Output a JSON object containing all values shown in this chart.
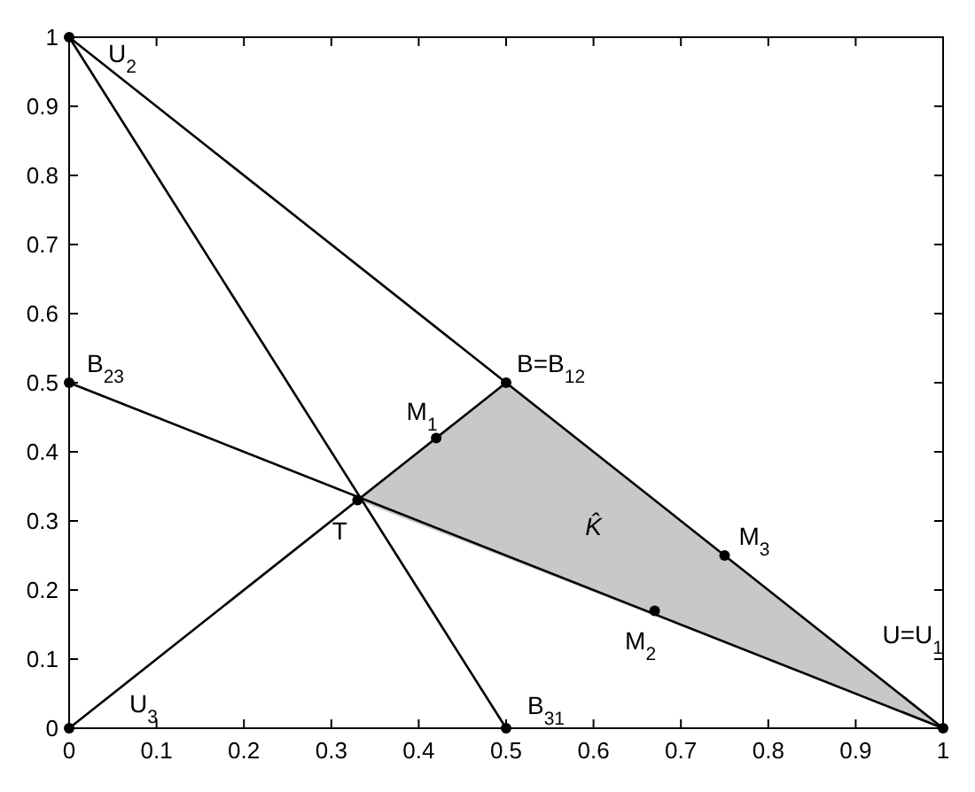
{
  "chart_data": {
    "type": "line",
    "xlim": [
      0,
      1
    ],
    "ylim": [
      0,
      1
    ],
    "xticks": [
      0,
      0.1,
      0.2,
      0.3,
      0.4,
      0.5,
      0.6,
      0.7,
      0.8,
      0.9,
      1
    ],
    "yticks": [
      0,
      0.1,
      0.2,
      0.3,
      0.4,
      0.5,
      0.6,
      0.7,
      0.8,
      0.9,
      1
    ],
    "grid": false,
    "line_style": "solid",
    "series": [
      {
        "type": "area",
        "color": "#c8c8c8",
        "x": [
          0.33,
          0.5,
          1,
          0.33
        ],
        "values": [
          0.33,
          0.5,
          0,
          0.33
        ]
      },
      {
        "color": "#000000",
        "x": [
          0,
          0.5,
          1
        ],
        "values": [
          1,
          0.5,
          0
        ]
      },
      {
        "color": "#000000",
        "x": [
          0,
          0.5
        ],
        "values": [
          1,
          0
        ]
      },
      {
        "color": "#000000",
        "x": [
          0,
          1
        ],
        "values": [
          0.5,
          0
        ]
      },
      {
        "color": "#000000",
        "x": [
          0,
          0.5
        ],
        "values": [
          0,
          0.5
        ]
      },
      {
        "type": "scatter",
        "color": "#000000",
        "marker": "circle",
        "x": [
          0,
          0,
          0,
          0.5,
          1,
          0.5,
          0.33,
          0.42,
          0.67,
          0.75
        ],
        "values": [
          1,
          0.5,
          0,
          0,
          0,
          0.5,
          0.33,
          0.42,
          0.17,
          0.25
        ]
      }
    ],
    "annotations": [
      {
        "text": "U$_{2}$",
        "x": 0,
        "y": 1
      },
      {
        "text": "B$_{23}$",
        "x": 0,
        "y": 0.5
      },
      {
        "text": "U$_{3}$",
        "x": 0,
        "y": 0
      },
      {
        "text": "B$_{31}$",
        "x": 0.5,
        "y": 0
      },
      {
        "text": "U=U$_{1}$",
        "x": 1,
        "y": 0
      },
      {
        "text": "B=B$_{12}$",
        "x": 0.5,
        "y": 0.5
      },
      {
        "text": "T",
        "x": 0.33,
        "y": 0.33
      },
      {
        "text": "M$_{1}$",
        "x": 0.42,
        "y": 0.42
      },
      {
        "text": "M$_{2}$",
        "x": 0.67,
        "y": 0.17
      },
      {
        "text": "M$_{3}$",
        "x": 0.75,
        "y": 0.25
      },
      "K̂"
    ]
  }
}
